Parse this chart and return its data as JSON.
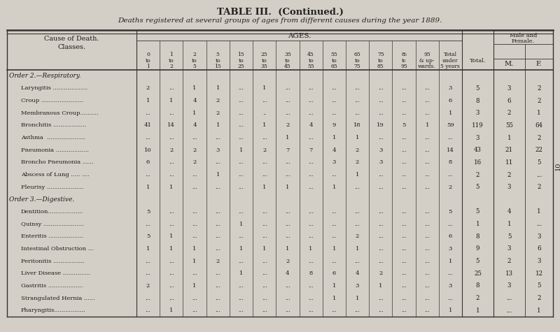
{
  "title": "TABLE III.  (Continued.)",
  "subtitle": "Deaths registered at several groups of ages from different causes during the year 1889.",
  "bg_color": "#d4cfc6",
  "order2_label": "Order 2.—Respiratory.",
  "order3_label": "Order 3.—Digestive.",
  "rows": [
    {
      "name": "Laryngitis ...................",
      "vals": [
        "2",
        "...",
        "1",
        "1",
        "...",
        "1",
        "...",
        "...",
        "...",
        "...",
        "...",
        "...",
        "...",
        "3",
        "5",
        "3",
        "2"
      ]
    },
    {
      "name": "Croup .......................",
      "vals": [
        "1",
        "1",
        "4",
        "2",
        "...",
        "...",
        "...",
        "...",
        "...",
        "...",
        "...",
        "...",
        "...",
        "6",
        "8",
        "6",
        "2"
      ]
    },
    {
      "name": "Membranous Croup..........",
      "vals": [
        "...",
        "...",
        "1",
        "2",
        "...",
        "..",
        "...",
        "...",
        "...",
        "...",
        "...",
        "...",
        "...",
        "1",
        "3",
        "2",
        "1"
      ]
    },
    {
      "name": "Bronchitis ..................",
      "vals": [
        "41",
        "14",
        "4",
        "1",
        "...",
        "1",
        "2",
        "4",
        "9",
        "18",
        "19",
        "5",
        "1",
        "59",
        "119",
        "55",
        "64"
      ]
    },
    {
      "name": "Asthma  .....................",
      "vals": [
        "...",
        "...",
        "...",
        "...",
        "...",
        "...",
        "1",
        "...",
        "1",
        "1",
        "...",
        "...",
        "...",
        "...",
        "3",
        "1",
        "2"
      ]
    },
    {
      "name": "Pneumonia ..................",
      "vals": [
        "10",
        "2",
        "2",
        "3",
        "1",
        "2",
        "7",
        "7",
        "4",
        "2",
        "3",
        "...",
        "...",
        "14",
        "43",
        "21",
        "22"
      ]
    },
    {
      "name": "Broncho Pneumonia ......",
      "vals": [
        "6",
        "...",
        "2",
        "...",
        "...",
        "...",
        "...",
        "...",
        "3",
        "2",
        "3",
        "...",
        "...",
        "8",
        "16",
        "11",
        "5"
      ]
    },
    {
      "name": "Abscess of Lung ..... ....",
      "vals": [
        "...",
        "...",
        "...",
        "1",
        "...",
        "...",
        "...",
        "...",
        "...",
        "1",
        "...",
        "...",
        "...",
        "...",
        "2",
        "2",
        "..."
      ]
    },
    {
      "name": "Pleurisy ....................",
      "vals": [
        "1",
        "1",
        "...",
        "...",
        "...",
        "1",
        "1",
        "...",
        "1",
        "...",
        "...",
        "...",
        "...",
        "2",
        "5",
        "3",
        "2"
      ]
    },
    {
      "name": "Dentition...................",
      "vals": [
        "5",
        "...",
        "...",
        "...",
        "...",
        "...",
        "...",
        "...",
        "...",
        "...",
        "...",
        "...",
        "...",
        "5",
        "5",
        "4",
        "1"
      ]
    },
    {
      "name": "Quinsy ......................",
      "vals": [
        "...",
        "...",
        "...",
        "...",
        "1",
        "...",
        "...",
        "...",
        "...",
        "...",
        "...",
        "...",
        "...",
        "...",
        "1",
        "1",
        "..."
      ]
    },
    {
      "name": "Enteritis ...................",
      "vals": [
        "5",
        "1",
        "...",
        "...",
        "...",
        "...",
        "...",
        "...",
        "...",
        "2",
        "...",
        "...",
        "...",
        "6",
        "8",
        "5",
        "3"
      ]
    },
    {
      "name": "Intestinal Obstruction ...",
      "vals": [
        "1",
        "1",
        "1",
        "...",
        "1",
        "1",
        "1",
        "1",
        "1",
        "1",
        "...",
        "...",
        "...",
        "3",
        "9",
        "3",
        "6"
      ]
    },
    {
      "name": "Peritonitis .................",
      "vals": [
        "...",
        "...",
        "1",
        "2",
        "...",
        "...",
        "2",
        "...",
        "...",
        "...",
        "...",
        "...",
        "...",
        "1",
        "5",
        "2",
        "3"
      ]
    },
    {
      "name": "Liver Disease ...............",
      "vals": [
        "...",
        "...",
        "...",
        "...",
        "1",
        "...",
        "4",
        "8",
        "6",
        "4",
        "2",
        "...",
        "...",
        "...",
        "25",
        "13",
        "12"
      ]
    },
    {
      "name": "Gastritis ...................",
      "vals": [
        "2",
        "...",
        "1",
        "...",
        "...",
        "...",
        "...",
        "...",
        "1",
        "3",
        "1",
        "...",
        "...",
        "3",
        "8",
        "3",
        "5"
      ]
    },
    {
      "name": "Strangulated Hernia ......",
      "vals": [
        "...",
        "...",
        "...",
        "...",
        "...",
        "...",
        "...",
        "...",
        "1",
        "1",
        "...",
        "...",
        "...",
        "...",
        "2",
        "...",
        "2"
      ]
    },
    {
      "name": "Pharyngitis.................",
      "vals": [
        "...",
        "1",
        "...",
        "...",
        "...",
        "...",
        "...",
        "...",
        "...",
        "...",
        "...",
        "...",
        "...",
        "1",
        "1",
        "...",
        "1"
      ]
    }
  ]
}
